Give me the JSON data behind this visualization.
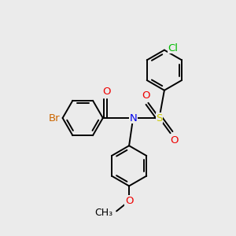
{
  "background_color": "#ebebeb",
  "atom_colors": {
    "C": "#000000",
    "N": "#0000ee",
    "O": "#ee0000",
    "S": "#cccc00",
    "Br": "#cc6600",
    "Cl": "#00bb00"
  },
  "bond_color": "#000000",
  "bond_width": 1.4,
  "font_size": 9.5,
  "fig_size": [
    3.0,
    3.0
  ],
  "dpi": 100,
  "xlim": [
    -2.6,
    2.0
  ],
  "ylim": [
    -2.2,
    2.2
  ]
}
